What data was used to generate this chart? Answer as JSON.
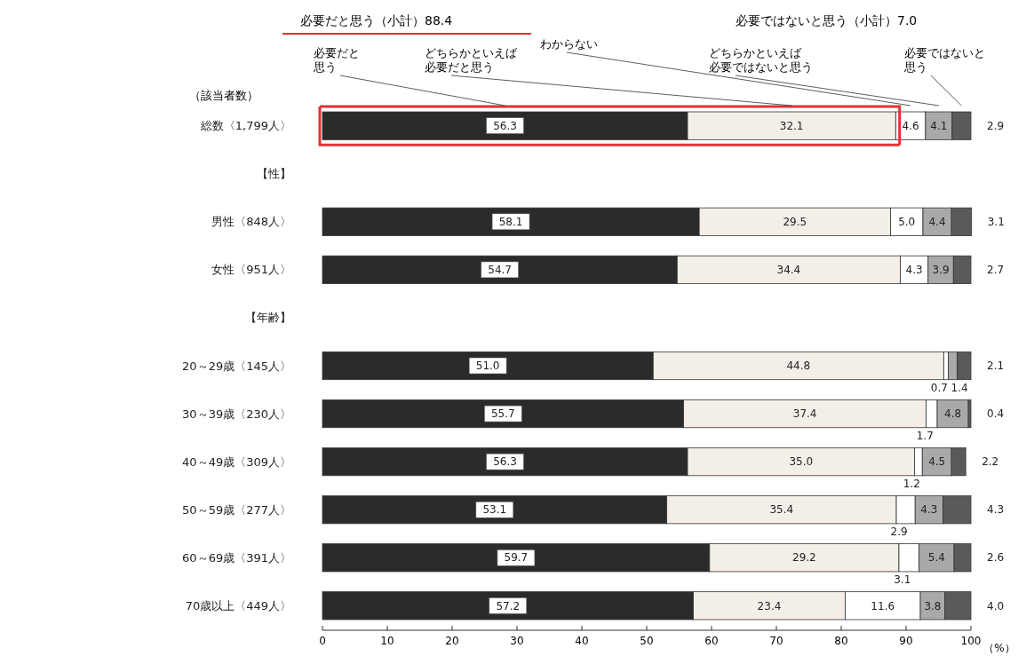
{
  "chart_data": {
    "type": "bar",
    "orientation": "horizontal",
    "stacked": true,
    "legend": "top",
    "xlabel": "（%）",
    "xlim": [
      0,
      100
    ],
    "xticks": [
      0,
      10,
      20,
      30,
      40,
      50,
      60,
      70,
      80,
      90,
      100
    ],
    "categories": [
      "総数〈1,799人〉",
      "【性】",
      "男性〈848人〉",
      "女性〈951人〉",
      "【年齢】",
      "20～29歳〈145人〉",
      "30～39歳〈230人〉",
      "40～49歳〈309人〉",
      "50～59歳〈277人〉",
      "60～69歳〈391人〉",
      "70歳以上〈449人〉"
    ],
    "series": [
      {
        "name": "必要だと思う",
        "color": "#2b2b2b",
        "values": [
          56.3,
          null,
          58.1,
          54.7,
          null,
          51.0,
          55.7,
          56.3,
          53.1,
          59.7,
          57.2
        ],
        "value_labels": [
          "56.3",
          null,
          "58.1",
          "54.7",
          null,
          "51.0",
          "55.7",
          "56.3",
          "53.1",
          "59.7",
          "57.2"
        ]
      },
      {
        "name": "どちらかといえば必要だと思う",
        "color": "#f3efe8",
        "values": [
          32.1,
          null,
          29.5,
          34.4,
          null,
          44.8,
          37.4,
          35.0,
          35.4,
          29.2,
          23.4
        ],
        "value_labels": [
          "32.1",
          null,
          "29.5",
          "34.4",
          null,
          "44.8",
          "37.4",
          "35.0",
          "35.4",
          "29.2",
          "23.4"
        ]
      },
      {
        "name": "わからない",
        "color": "#ffffff",
        "values": [
          4.6,
          null,
          5.0,
          4.3,
          null,
          0.7,
          1.7,
          1.2,
          2.9,
          3.1,
          11.6
        ],
        "value_labels": [
          "4.6",
          null,
          "5.0",
          "4.3",
          null,
          "0.7",
          "1.7",
          "1.2",
          "2.9",
          "3.1",
          "11.6"
        ]
      },
      {
        "name": "どちらかといえば必要ではないと思う",
        "color": "#a9a9a9",
        "values": [
          4.1,
          null,
          4.4,
          3.9,
          null,
          1.4,
          4.8,
          4.5,
          4.3,
          5.4,
          3.8
        ],
        "value_labels": [
          "4.1",
          null,
          "4.4",
          "3.9",
          null,
          "1.4",
          "4.8",
          "4.5",
          "4.3",
          "5.4",
          "3.8"
        ]
      },
      {
        "name": "必要ではないと思う",
        "color": "#5a5a5a",
        "values": [
          2.9,
          null,
          3.1,
          2.7,
          null,
          2.1,
          0.4,
          2.2,
          4.3,
          2.6,
          4.0
        ],
        "value_labels": [
          "2.9",
          null,
          "3.1",
          "2.7",
          null,
          "2.1",
          "0.4",
          "2.2",
          "4.3",
          "2.6",
          "4.0"
        ]
      }
    ],
    "annotations": [
      "（該当者数）",
      "必要だと思う（小計）88.4",
      "必要ではないと思う（小計）7.0"
    ]
  }
}
